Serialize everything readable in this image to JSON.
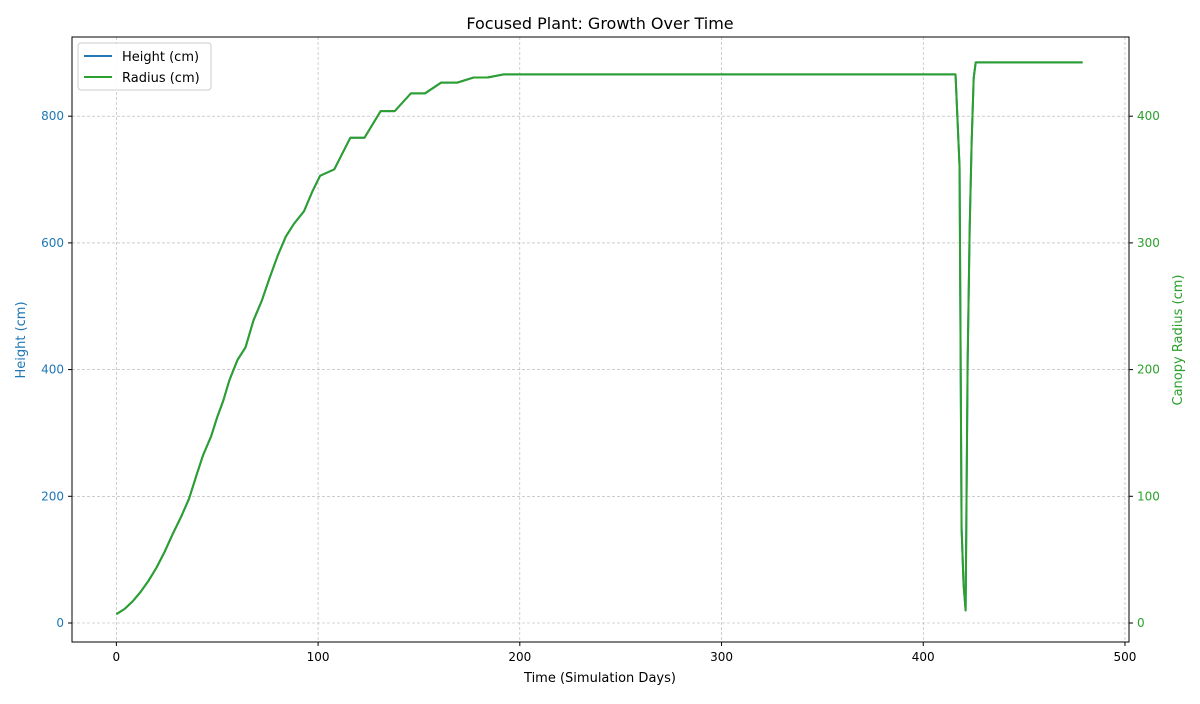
{
  "chart_data": {
    "type": "line",
    "title": "Focused Plant: Growth Over Time",
    "xlabel": "Time (Simulation Days)",
    "ylabel_left": "Height (cm)",
    "ylabel_right": "Canopy Radius (cm)",
    "xlim": [
      -22,
      502
    ],
    "ylim_left": [
      -30,
      925
    ],
    "ylim_right": [
      -15,
      462.5
    ],
    "x_ticks": [
      0,
      100,
      200,
      300,
      400,
      500
    ],
    "y_left_ticks": [
      0,
      200,
      400,
      600,
      800
    ],
    "y_right_ticks": [
      0,
      100,
      200,
      300,
      400
    ],
    "grid": true,
    "legend": "top-left",
    "colors": {
      "height": "#1f77b4",
      "radius": "#2ca02c",
      "left_axis": "#1f77b4",
      "right_axis": "#2ca02c"
    },
    "series": [
      {
        "name": "Height (cm)",
        "axis": "left",
        "x": [
          0,
          4,
          8,
          12,
          16,
          20,
          24,
          28,
          32,
          36,
          40,
          43,
          47,
          50,
          53,
          56,
          60,
          64,
          68,
          72,
          76,
          80,
          84,
          88,
          93,
          97,
          101,
          108,
          116,
          123,
          131,
          138,
          146,
          153,
          161,
          169,
          177,
          184,
          192,
          200,
          300,
          410,
          416,
          418,
          419,
          420,
          421,
          422,
          423,
          424,
          425,
          426,
          430,
          440,
          479
        ],
        "y": [
          14,
          22,
          34,
          49,
          67,
          88,
          113,
          141,
          167,
          196,
          236,
          265,
          295,
          325,
          351,
          383,
          415,
          435,
          478,
          508,
          545,
          580,
          610,
          630,
          650,
          680,
          706,
          716,
          766,
          766,
          808,
          808,
          836,
          836,
          853,
          853,
          861,
          861,
          866,
          866,
          866,
          866,
          866,
          720,
          150,
          60,
          20,
          410,
          620,
          760,
          860,
          885,
          885,
          885,
          885
        ]
      },
      {
        "name": "Radius (cm)",
        "axis": "right",
        "x": [
          0,
          4,
          8,
          12,
          16,
          20,
          24,
          28,
          32,
          36,
          40,
          43,
          47,
          50,
          53,
          56,
          60,
          64,
          68,
          72,
          76,
          80,
          84,
          88,
          93,
          97,
          101,
          108,
          116,
          123,
          131,
          138,
          146,
          153,
          161,
          169,
          177,
          184,
          192,
          200,
          300,
          410,
          416,
          418,
          419,
          420,
          421,
          422,
          423,
          424,
          425,
          426,
          430,
          440,
          479
        ],
        "y": [
          7,
          11,
          17,
          24.5,
          33.5,
          44,
          56.5,
          70.5,
          83.5,
          98,
          118,
          132.5,
          147.5,
          162.5,
          175.5,
          191.5,
          207.5,
          217.5,
          239,
          254,
          272.5,
          290,
          305,
          315,
          325,
          340,
          353,
          358,
          383,
          383,
          404,
          404,
          418,
          418,
          426.5,
          426.5,
          430.5,
          430.5,
          433,
          433,
          433,
          433,
          433,
          360,
          75,
          30,
          10,
          205,
          310,
          380,
          430,
          442.5,
          442.5,
          442.5,
          442.5
        ]
      }
    ]
  }
}
